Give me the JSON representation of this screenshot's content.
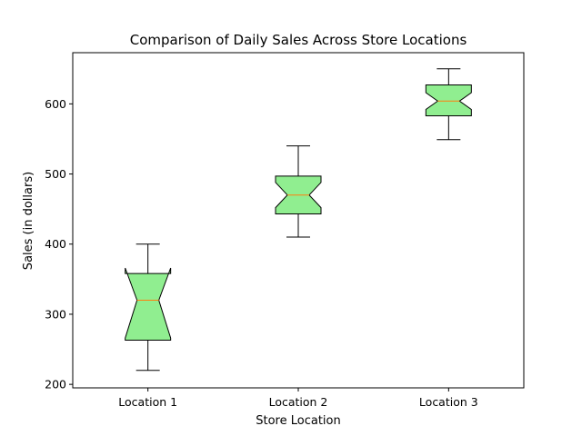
{
  "chart_data": {
    "type": "boxplot",
    "title": "Comparison of Daily Sales Across Store Locations",
    "xlabel": "Store Location",
    "ylabel": "Sales (in dollars)",
    "ylim": [
      195,
      673
    ],
    "yticks": [
      200,
      300,
      400,
      500,
      600
    ],
    "grid": false,
    "notched": true,
    "box_fill": "#90ee90",
    "box_edge": "#000000",
    "median_color": "#ff7f0e",
    "categories": [
      "Location 1",
      "Location 2",
      "Location 3"
    ],
    "boxes": [
      {
        "category": "Location 1",
        "whisker_low": 220,
        "q1": 263,
        "median": 320,
        "q3": 358,
        "whisker_high": 400,
        "notch_low": 266,
        "notch_high": 366
      },
      {
        "category": "Location 2",
        "whisker_low": 410,
        "q1": 443,
        "median": 470,
        "q3": 497,
        "whisker_high": 540,
        "notch_low": 452,
        "notch_high": 488
      },
      {
        "category": "Location 3",
        "whisker_low": 549,
        "q1": 583,
        "median": 604,
        "q3": 627,
        "whisker_high": 650,
        "notch_low": 592,
        "notch_high": 616
      }
    ]
  }
}
